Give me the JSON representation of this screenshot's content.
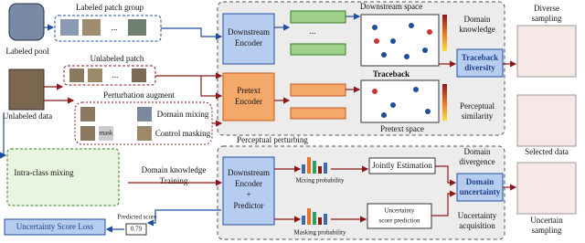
{
  "labeled_pool": "Labeled pool",
  "labeled_patch_group": "Labeled patch group",
  "unlabeled_patch": "Unlabeled patch",
  "unlabeled_data": "Unlabeled data",
  "perturbation_augment": "Perturbation augment",
  "domain_mixing": "Domain mixing",
  "control_masking": "Control masking",
  "mask": "mask",
  "perceptual_perturbing": "Perceptual perturbing",
  "downstream_encoder": [
    "Downstream",
    "Encoder"
  ],
  "pretext_encoder": [
    "Pretext",
    "Encoder"
  ],
  "ellipsis": "...",
  "downstream_space": "Downstream space",
  "domain_knowledge": [
    "Domain",
    "knowledge"
  ],
  "traceback": "Traceback",
  "traceback_diversity": [
    "Traceback",
    "diversity"
  ],
  "perceptual_similarity": [
    "Perceptual",
    "similarity"
  ],
  "pretext_space": "Pretext space",
  "diverse_sampling": [
    "Diverse",
    "sampling"
  ],
  "selected_data": "Selected data",
  "uncertain_sampling": [
    "Uncertain",
    "sampling"
  ],
  "intra_class_mixing": "Intra-class mixing",
  "domain_knowledge_training": [
    "Domain knowledge",
    "Training"
  ],
  "predictor_encoder": [
    "Downstream",
    "Encoder",
    "+",
    "Predictor"
  ],
  "mixing_probability": "Mixing probability",
  "masking_probability": "Masking probability",
  "jointly_estimation": "Jointly Estimation",
  "domain_divergence": [
    "Domain",
    "divergence"
  ],
  "domain_uncertainty": [
    "Domain",
    "uncertainty"
  ],
  "uncertainty_score_prediction": [
    "Uncertainty",
    "score prediction"
  ],
  "uncertainty_acquisition": [
    "Uncertainty",
    "acquisition"
  ],
  "predicted_score": "Predicted score",
  "score_value": "0.79",
  "uncertainty_score_loss": "Uncertainty Score Loss"
}
